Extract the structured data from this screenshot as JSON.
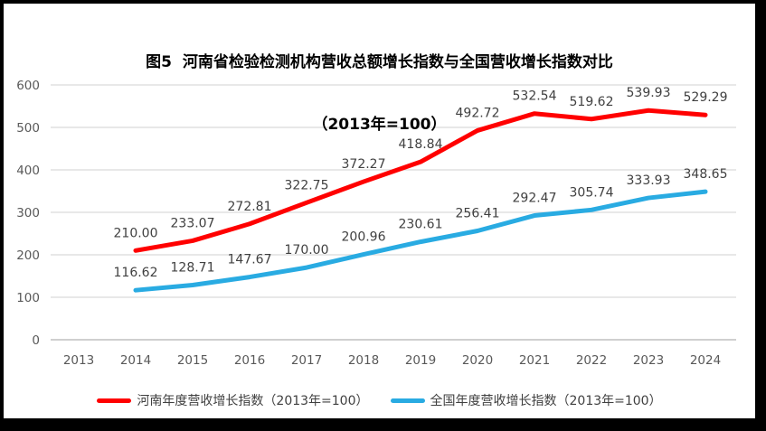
{
  "chart_data": {
    "type": "line",
    "title_line1": "图5  河南省检验检测机构营收总额增长指数与全国营收增长指数对比",
    "title_line2": "（2013年=100）",
    "categories": [
      "2013",
      "2014",
      "2015",
      "2016",
      "2017",
      "2018",
      "2019",
      "2020",
      "2021",
      "2022",
      "2023",
      "2024"
    ],
    "yticks": [
      0,
      100,
      200,
      300,
      400,
      500,
      600
    ],
    "ylim": [
      0,
      600
    ],
    "grid": true,
    "legend_position": "bottom",
    "value_labels": true,
    "value_labels_decimals": 2,
    "series": [
      {
        "name": "河南年度营收增长指数（2013年=100）",
        "color": "#FF0000",
        "start_category": "2014",
        "values": [
          210.0,
          233.07,
          272.81,
          322.75,
          372.27,
          418.84,
          492.72,
          532.54,
          519.62,
          539.93,
          529.29
        ]
      },
      {
        "name": "全国年度营收增长指数（2013年=100）",
        "color": "#29ABE2",
        "start_category": "2014",
        "values": [
          116.62,
          128.71,
          147.67,
          170.0,
          200.96,
          230.61,
          256.41,
          292.47,
          305.74,
          333.93,
          348.65
        ]
      }
    ]
  },
  "colors": {
    "gridline": "#D9D9D9",
    "axis_line": "#CFCFCF",
    "axis_text": "#595959",
    "data_label_text": "#404040",
    "title_text": "#000000",
    "legend_text": "#404040",
    "frame_border": "#000000",
    "background": "#FFFFFF"
  }
}
